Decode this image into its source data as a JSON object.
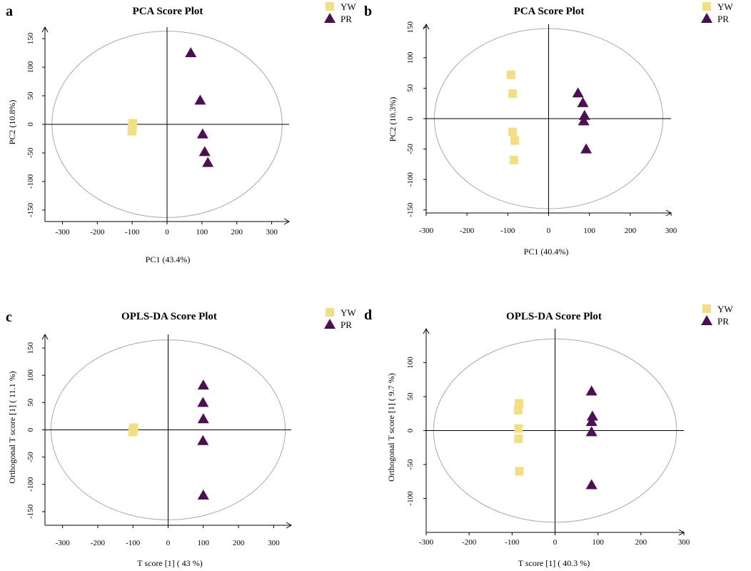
{
  "colors": {
    "YW": "#f2df82",
    "PR": "#4b0f52",
    "axis": "#000000",
    "ellipse": "#a8a8a8"
  },
  "chart_data": [
    {
      "panel": "a",
      "type": "scatter",
      "title": "PCA Score Plot",
      "xlabel": "PC1 (43.4%)",
      "ylabel": "PC2 (10.8%)",
      "xlim": [
        -350,
        350
      ],
      "ylim": [
        -170,
        170
      ],
      "xticks": [
        -300,
        -200,
        -100,
        0,
        100,
        200,
        300
      ],
      "yticks": [
        -150,
        -100,
        -50,
        0,
        50,
        100,
        150
      ],
      "ellipse": {
        "rx": 330,
        "ry": 163
      },
      "legend": [
        {
          "name": "YW",
          "marker": "square"
        },
        {
          "name": "PR",
          "marker": "triangle"
        }
      ],
      "series": [
        {
          "name": "YW",
          "marker": "square",
          "points": [
            [
              -98,
              2
            ],
            [
              -99,
              -2
            ],
            [
              -100,
              -5
            ],
            [
              -100,
              -9
            ],
            [
              -101,
              -12
            ]
          ]
        },
        {
          "name": "PR",
          "marker": "triangle",
          "points": [
            [
              68,
              125
            ],
            [
              95,
              42
            ],
            [
              102,
              -17
            ],
            [
              108,
              -48
            ],
            [
              117,
              -67
            ]
          ]
        }
      ]
    },
    {
      "panel": "b",
      "type": "scatter",
      "title": "PCA Score Plot",
      "xlabel": "PC1 (40.4%)",
      "ylabel": "PC2 (10.3%)",
      "xlim": [
        -300,
        300
      ],
      "ylim": [
        -155,
        155
      ],
      "xticks": [
        -300,
        -200,
        -100,
        0,
        100,
        200,
        300
      ],
      "yticks": [
        -150,
        -100,
        -50,
        0,
        50,
        100,
        150
      ],
      "ellipse": {
        "rx": 280,
        "ry": 148
      },
      "legend": [
        {
          "name": "YW",
          "marker": "square"
        },
        {
          "name": "PR",
          "marker": "triangle"
        }
      ],
      "series": [
        {
          "name": "YW",
          "marker": "square",
          "points": [
            [
              -92,
              72
            ],
            [
              -88,
              41
            ],
            [
              -88,
              -22
            ],
            [
              -83,
              -36
            ],
            [
              -85,
              -68
            ]
          ]
        },
        {
          "name": "PR",
          "marker": "triangle",
          "points": [
            [
              72,
              42
            ],
            [
              84,
              26
            ],
            [
              88,
              5
            ],
            [
              86,
              -4
            ],
            [
              92,
              -50
            ]
          ]
        }
      ]
    },
    {
      "panel": "c",
      "type": "scatter",
      "title": "OPLS-DA Score Plot",
      "xlabel": "T score [1] ( 43 %)",
      "ylabel": "Orthogonal T score [1] ( 11.1 %)",
      "xlim": [
        -350,
        350
      ],
      "ylim": [
        -175,
        175
      ],
      "xticks": [
        -300,
        -200,
        -100,
        0,
        100,
        200,
        300
      ],
      "yticks": [
        -150,
        -100,
        -50,
        0,
        50,
        100,
        150
      ],
      "ellipse": {
        "rx": 333,
        "ry": 165
      },
      "legend": [
        {
          "name": "YW",
          "marker": "square"
        },
        {
          "name": "PR",
          "marker": "triangle"
        }
      ],
      "series": [
        {
          "name": "YW",
          "marker": "square",
          "points": [
            [
              -98,
              4
            ],
            [
              -100,
              0
            ],
            [
              -99,
              -2
            ],
            [
              -98,
              2
            ],
            [
              -101,
              -4
            ]
          ]
        },
        {
          "name": "PR",
          "marker": "triangle",
          "points": [
            [
              100,
              82
            ],
            [
              99,
              50
            ],
            [
              100,
              20
            ],
            [
              99,
              -20
            ],
            [
              100,
              -120
            ]
          ]
        }
      ]
    },
    {
      "panel": "d",
      "type": "scatter",
      "title": "OPLS-DA Score Plot",
      "xlabel": "T score [1] ( 40.3 %)",
      "ylabel": "Orthogonal T score [1] ( 9.7 %)",
      "xlim": [
        -300,
        300
      ],
      "ylim": [
        -150,
        150
      ],
      "xticks": [
        -300,
        -200,
        -100,
        0,
        100,
        200,
        300
      ],
      "yticks": [
        -100,
        -50,
        0,
        50,
        100
      ],
      "ellipse": {
        "rx": 283,
        "ry": 135
      },
      "legend": [
        {
          "name": "YW",
          "marker": "square"
        },
        {
          "name": "PR",
          "marker": "triangle"
        }
      ],
      "series": [
        {
          "name": "YW",
          "marker": "square",
          "points": [
            [
              -84,
              40
            ],
            [
              -86,
              30
            ],
            [
              -85,
              3
            ],
            [
              -85,
              -12
            ],
            [
              -83,
              -60
            ]
          ]
        },
        {
          "name": "PR",
          "marker": "triangle",
          "points": [
            [
              85,
              58
            ],
            [
              87,
              21
            ],
            [
              85,
              13
            ],
            [
              85,
              -2
            ],
            [
              85,
              -80
            ]
          ]
        }
      ]
    }
  ]
}
